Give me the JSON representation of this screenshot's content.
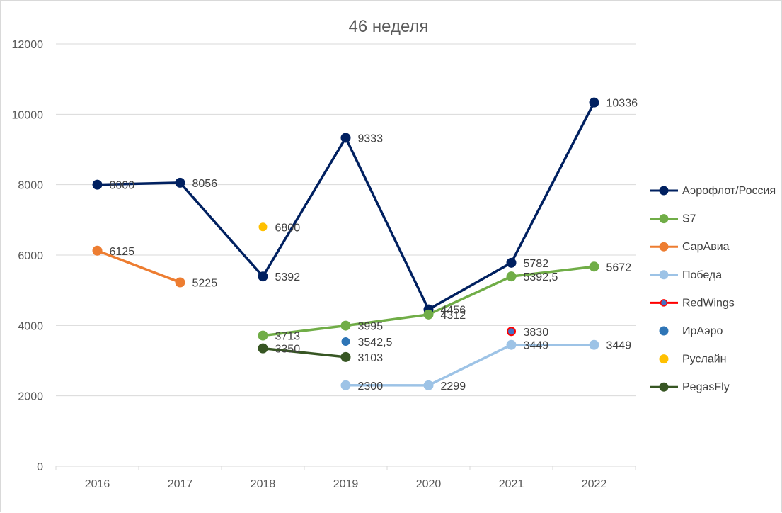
{
  "chart_data": {
    "type": "line",
    "title": "46 неделя",
    "xlabel": "",
    "ylabel": "",
    "categories": [
      "2016",
      "2017",
      "2018",
      "2019",
      "2020",
      "2021",
      "2022"
    ],
    "ylim": [
      0,
      12000
    ],
    "yticks": [
      0,
      2000,
      4000,
      6000,
      8000,
      10000,
      12000
    ],
    "ytick_labels": [
      "0",
      "2000",
      "4000",
      "6000",
      "8000",
      "10000",
      "12000"
    ],
    "grid": true,
    "legend_position": "right",
    "series": [
      {
        "name": "Аэрофлот/Россия",
        "color": "#002060",
        "marker_border": "#002060",
        "line": true,
        "values": [
          8000,
          8056,
          5392,
          9333,
          4456,
          5782,
          10336
        ],
        "labels": [
          "8000",
          "8056",
          "5392",
          "9333",
          "4456",
          "5782",
          "10336"
        ]
      },
      {
        "name": "S7",
        "color": "#70ad47",
        "marker_border": "#70ad47",
        "line": true,
        "values": [
          null,
          null,
          3713,
          3995,
          4312,
          5392.5,
          5672
        ],
        "labels": [
          null,
          null,
          "3713",
          "3995",
          "4312",
          "5392,5",
          "5672"
        ]
      },
      {
        "name": "СарАвиа",
        "color": "#ed7d31",
        "marker_border": "#ed7d31",
        "line": true,
        "values": [
          6125,
          5225,
          null,
          null,
          null,
          null,
          null
        ],
        "labels": [
          "6125",
          "5225",
          null,
          null,
          null,
          null,
          null
        ]
      },
      {
        "name": "Победа",
        "color": "#9dc3e6",
        "marker_border": "#9dc3e6",
        "line": true,
        "values": [
          null,
          null,
          null,
          2300,
          2299,
          3449,
          3449
        ],
        "labels": [
          null,
          null,
          null,
          "2300",
          "2299",
          "3449",
          "3449"
        ]
      },
      {
        "name": "RedWings",
        "color": "#4472c4",
        "marker_border": "#ff0000",
        "line_color": "#ff0000",
        "line": false,
        "values": [
          null,
          null,
          null,
          null,
          null,
          3830,
          null
        ],
        "labels": [
          null,
          null,
          null,
          null,
          null,
          "3830",
          null
        ]
      },
      {
        "name": "ИрАэро",
        "color": "#2e75b6",
        "marker_border": "#2e75b6",
        "line": false,
        "values": [
          null,
          null,
          null,
          3542.5,
          null,
          null,
          null
        ],
        "labels": [
          null,
          null,
          null,
          "3542,5",
          null,
          null,
          null
        ]
      },
      {
        "name": "Руслайн",
        "color": "#ffc000",
        "marker_border": "#ffc000",
        "line": false,
        "values": [
          null,
          null,
          6800,
          null,
          null,
          null,
          null
        ],
        "labels": [
          null,
          null,
          "6800",
          null,
          null,
          null,
          null
        ]
      },
      {
        "name": "PegasFly",
        "color": "#375623",
        "marker_border": "#375623",
        "line": true,
        "values": [
          null,
          null,
          3350,
          3103,
          null,
          null,
          null
        ],
        "labels": [
          null,
          null,
          "3350",
          "3103",
          null,
          null,
          null
        ]
      }
    ]
  }
}
